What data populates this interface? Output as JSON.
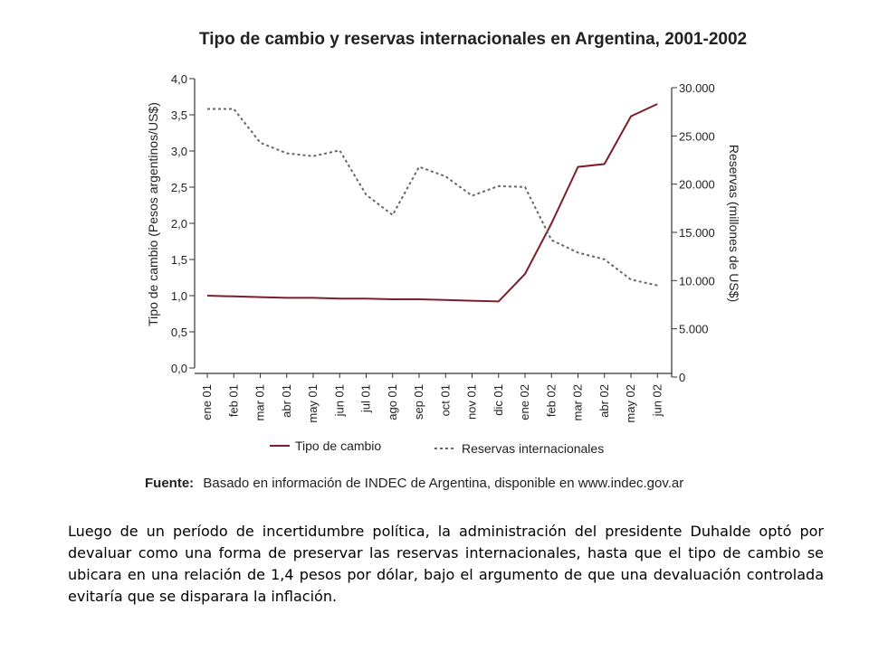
{
  "chart_data": {
    "type": "line",
    "title": "Tipo de cambio y reservas internacionales en Argentina, 2001-2002",
    "categories": [
      "ene 01",
      "feb 01",
      "mar 01",
      "abr 01",
      "may 01",
      "jun 01",
      "jul 01",
      "ago 01",
      "sep 01",
      "oct 01",
      "nov 01",
      "dic 01",
      "ene 02",
      "feb 02",
      "mar 02",
      "abr 02",
      "may 02",
      "jun 02"
    ],
    "ylabel_left": "Tipo de cambio (Pesos argentinos/US$)",
    "ylabel_right": "Reservas (millones de US$)",
    "ylim_left": [
      0,
      4
    ],
    "ylim_right": [
      0,
      30000
    ],
    "yticks_left": [
      "0,0",
      "0,5",
      "1,0",
      "1,5",
      "2,0",
      "2,5",
      "3,0",
      "3,5",
      "4,0"
    ],
    "yticks_right": [
      "0",
      "5.000",
      "10.000",
      "15.000",
      "20.000",
      "25.000",
      "30.000"
    ],
    "series": [
      {
        "name": "Tipo de cambio",
        "axis": "left",
        "color": "#7a1e2a",
        "style": "solid",
        "values": [
          1.0,
          0.99,
          0.98,
          0.97,
          0.97,
          0.96,
          0.96,
          0.95,
          0.95,
          0.94,
          0.93,
          0.92,
          1.3,
          2.0,
          2.78,
          2.82,
          3.48,
          3.65
        ]
      },
      {
        "name": "Reservas internacionales",
        "axis": "right",
        "color": "#666666",
        "style": "dashed",
        "values": [
          27800,
          27800,
          24300,
          23200,
          22900,
          23500,
          18900,
          16800,
          21800,
          20800,
          18800,
          19800,
          19700,
          14200,
          12900,
          12200,
          10100,
          9500
        ]
      }
    ],
    "legend_position": "bottom",
    "grid": false
  },
  "source": {
    "label": "Fuente:",
    "text": "Basado en información de INDEC de Argentina, disponible en www.indec.gov.ar"
  },
  "caption": "Luego de un período de incertidumbre política, la administración del presidente Duhalde optó por devaluar como una forma de preservar las reservas internacionales, hasta que el tipo de cambio se ubicara en una relación de 1,4 pesos por dólar, bajo el argumento de que una devaluación controlada evitaría que se disparara la inflación."
}
